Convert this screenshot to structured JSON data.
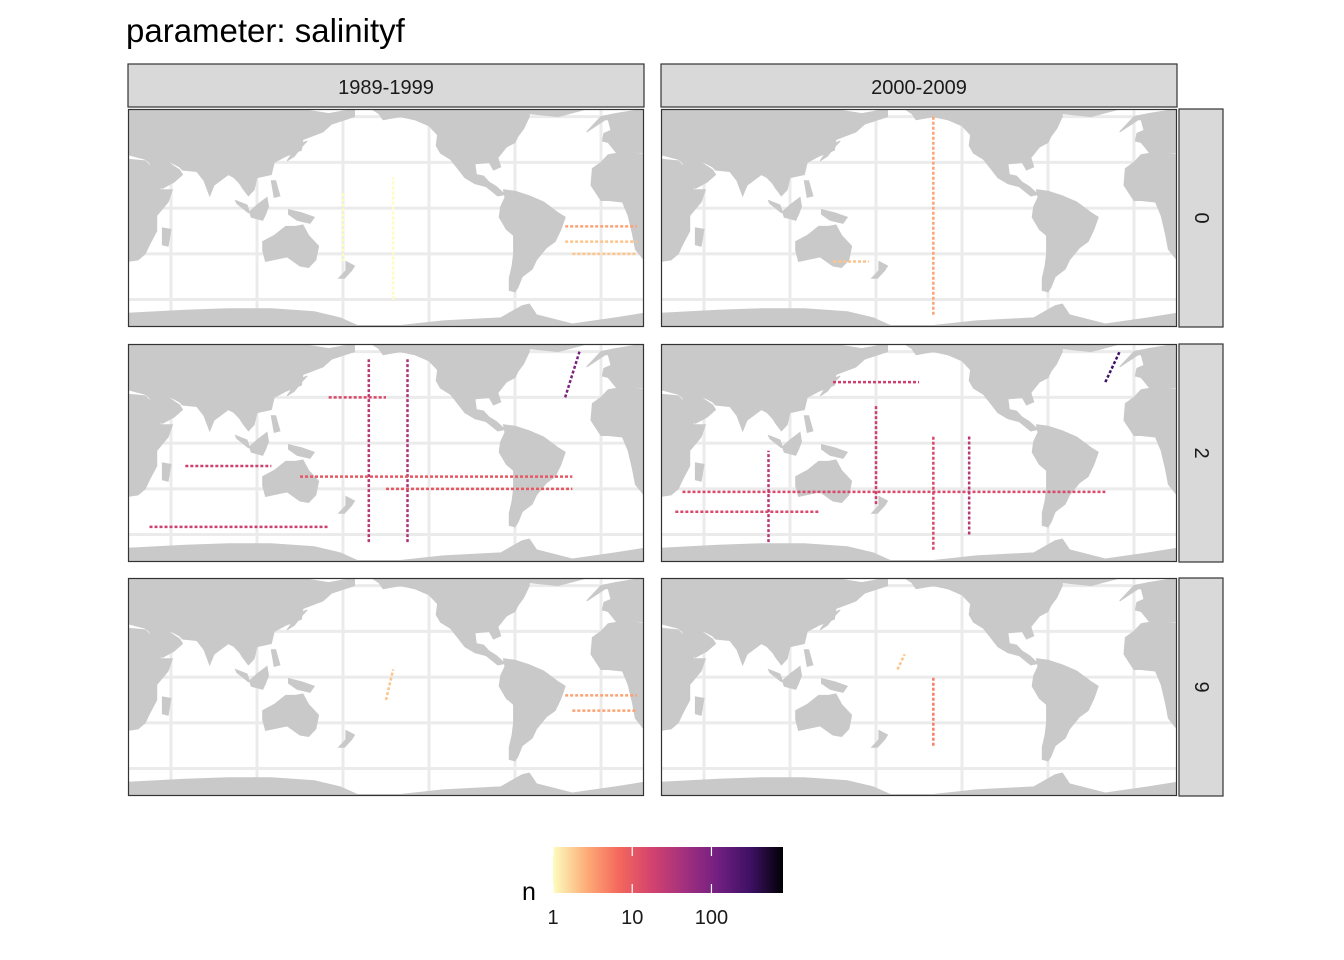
{
  "title": "parameter: salinityf",
  "columns": [
    "1989-1999",
    "2000-2009"
  ],
  "rows": [
    "0",
    "2",
    "9"
  ],
  "legend": {
    "title": "n",
    "ticks": [
      {
        "label": "1",
        "value": 1
      },
      {
        "label": "10",
        "value": 10
      },
      {
        "label": "100",
        "value": 100
      }
    ],
    "range": [
      1,
      800
    ],
    "scale": "log10",
    "palette": [
      "#fcfdbf",
      "#fdae78",
      "#f4685c",
      "#d3436e",
      "#a3307e",
      "#721f81",
      "#3e1165",
      "#000004"
    ]
  },
  "colors": {
    "land": "#c9c9c9",
    "ocean": "#ffffff",
    "grid": "#ebebeb",
    "strip": "#d9d9d9",
    "border": "#333333"
  },
  "chart_data": {
    "type": "heatmap",
    "title": "parameter: salinityf",
    "facet_cols": [
      "1989-1999",
      "2000-2009"
    ],
    "facet_rows": [
      "0",
      "2",
      "9"
    ],
    "fill": "n",
    "fill_scale": "log10",
    "legend_breaks": [
      1,
      10,
      100
    ],
    "x_range_lon": [
      20,
      380
    ],
    "y_range_lat": [
      -78,
      65
    ],
    "tracks": [
      {
        "row": "0",
        "col": "1989-1999",
        "segments": [
          {
            "lon": [
              325,
              375
            ],
            "lat": -12,
            "n": 3
          },
          {
            "lon": [
              325,
              375
            ],
            "lat": -22,
            "n": 2
          },
          {
            "lon": [
              330,
              375
            ],
            "lat": -30,
            "n": 2
          },
          {
            "lon": [
              205,
              205
            ],
            "lat": [
              -60,
              20
            ],
            "n": 1
          },
          {
            "lon": [
              170,
              170
            ],
            "lat": [
              -35,
              10
            ],
            "n": 1
          }
        ]
      },
      {
        "row": "0",
        "col": "2000-2009",
        "segments": [
          {
            "lon": [
              210,
              210
            ],
            "lat": [
              -70,
              60
            ],
            "n": 3
          },
          {
            "lon": [
              140,
              165
            ],
            "lat": -35,
            "n": 2
          }
        ]
      },
      {
        "row": "2",
        "col": "1989-1999",
        "segments": [
          {
            "lon": [
              325,
              335
            ],
            "lat": [
              30,
              60
            ],
            "n": 100
          },
          {
            "lon": [
              215,
              215
            ],
            "lat": [
              -65,
              55
            ],
            "n": 40
          },
          {
            "lon": [
              188,
              188
            ],
            "lat": [
              -65,
              55
            ],
            "n": 30
          },
          {
            "lon": [
              35,
              160
            ],
            "lat": -55,
            "n": 20
          },
          {
            "lon": [
              140,
              330
            ],
            "lat": -22,
            "n": 10
          },
          {
            "lon": [
              200,
              330
            ],
            "lat": -30,
            "n": 10
          },
          {
            "lon": [
              160,
              200
            ],
            "lat": 30,
            "n": 15
          },
          {
            "lon": [
              60,
              120
            ],
            "lat": -15,
            "n": 20
          }
        ]
      },
      {
        "row": "2",
        "col": "2000-2009",
        "segments": [
          {
            "lon": [
              330,
              340
            ],
            "lat": [
              40,
              60
            ],
            "n": 300
          },
          {
            "lon": [
              35,
              330
            ],
            "lat": -32,
            "n": 15
          },
          {
            "lon": [
              140,
              200
            ],
            "lat": 40,
            "n": 20
          },
          {
            "lon": [
              95,
              95
            ],
            "lat": [
              -65,
              -5
            ],
            "n": 30
          },
          {
            "lon": [
              170,
              170
            ],
            "lat": [
              -40,
              25
            ],
            "n": 20
          },
          {
            "lon": [
              210,
              210
            ],
            "lat": [
              -70,
              5
            ],
            "n": 15
          },
          {
            "lon": [
              235,
              235
            ],
            "lat": [
              -60,
              5
            ],
            "n": 30
          },
          {
            "lon": [
              30,
              130
            ],
            "lat": -45,
            "n": 15
          }
        ]
      },
      {
        "row": "9",
        "col": "1989-1999",
        "segments": [
          {
            "lon": [
              325,
              375
            ],
            "lat": -12,
            "n": 3
          },
          {
            "lon": [
              330,
              375
            ],
            "lat": -22,
            "n": 3
          },
          {
            "lon": [
              200,
              205
            ],
            "lat": [
              -15,
              5
            ],
            "n": 2
          }
        ]
      },
      {
        "row": "9",
        "col": "2000-2009",
        "segments": [
          {
            "lon": [
              210,
              210
            ],
            "lat": [
              -45,
              0
            ],
            "n": 5
          },
          {
            "lon": [
              185,
              190
            ],
            "lat": [
              5,
              15
            ],
            "n": 2
          }
        ]
      }
    ]
  }
}
